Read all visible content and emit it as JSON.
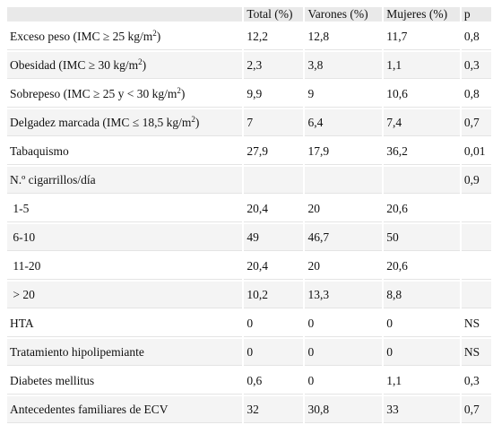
{
  "table": {
    "headers": [
      "",
      "Total (%)",
      "Varones (%)",
      "Mujeres (%)",
      "p"
    ],
    "rows": [
      {
        "label": "Exceso peso (IMC ≥ 25 kg/m",
        "sup": "2",
        "suffix": ")",
        "values": [
          "12,2",
          "12,8",
          "11,7",
          "0,8"
        ]
      },
      {
        "label": "Obesidad (IMC ≥ 30 kg/m",
        "sup": "2",
        "suffix": ")",
        "values": [
          "2,3",
          "3,8",
          "1,1",
          "0,3"
        ]
      },
      {
        "label": "Sobrepeso (IMC ≥ 25 y < 30 kg/m",
        "sup": "2",
        "suffix": ")",
        "values": [
          "9,9",
          "9",
          "10,6",
          "0,8"
        ]
      },
      {
        "label": "Delgadez marcada (IMC ≤ 18,5 kg/m",
        "sup": "2",
        "suffix": ")",
        "values": [
          "7",
          "6,4",
          "7,4",
          "0,7"
        ]
      },
      {
        "label": "Tabaquismo",
        "values": [
          "27,9",
          "17,9",
          "36,2",
          "0,01"
        ]
      },
      {
        "label": "N.º cigarrillos/día",
        "values": [
          "",
          "",
          "",
          "0,9"
        ]
      },
      {
        "label": " 1-5",
        "values": [
          "20,4",
          "20",
          "20,6",
          ""
        ]
      },
      {
        "label": " 6-10",
        "values": [
          "49",
          "46,7",
          "50",
          ""
        ]
      },
      {
        "label": " 11-20",
        "values": [
          "20,4",
          "20",
          "20,6",
          ""
        ]
      },
      {
        "label": " > 20",
        "values": [
          "10,2",
          "13,3",
          "8,8",
          ""
        ]
      },
      {
        "label": "HTA",
        "values": [
          "0",
          "0",
          "0",
          "NS"
        ]
      },
      {
        "label": "Tratamiento hipolipemiante",
        "values": [
          "0",
          "0",
          "0",
          "NS"
        ]
      },
      {
        "label": "Diabetes mellitus",
        "values": [
          "0,6",
          "0",
          "1,1",
          "0,3"
        ]
      },
      {
        "label": "Antecedentes familiares de ECV",
        "values": [
          "32",
          "30,8",
          "33",
          "0,7"
        ]
      }
    ]
  }
}
